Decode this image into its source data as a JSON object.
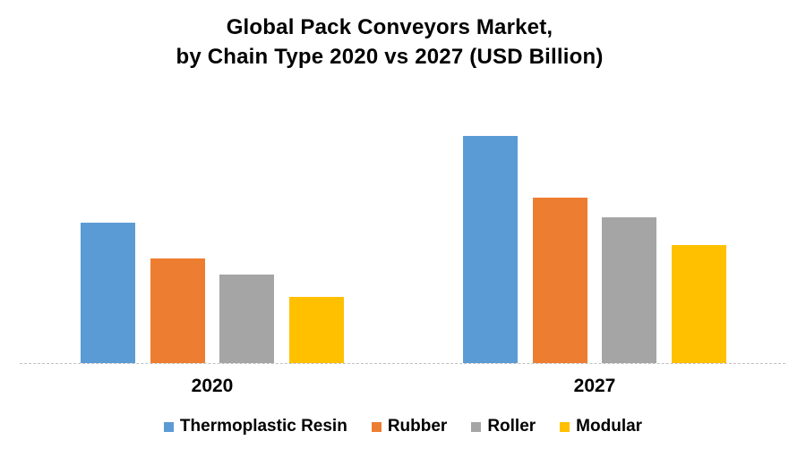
{
  "title": {
    "line1": "Global Pack Conveyors Market,",
    "line2": "by Chain Type 2020 vs 2027 (USD Billion)"
  },
  "chart_data": {
    "type": "bar",
    "title": "Global Pack Conveyors Market, by Chain Type 2020 vs 2027 (USD Billion)",
    "categories": [
      "2020",
      "2027"
    ],
    "series": [
      {
        "name": "Thermoplastic Resin",
        "color": "#5B9BD5",
        "values": [
          62,
          100
        ]
      },
      {
        "name": "Rubber",
        "color": "#ED7D31",
        "values": [
          46,
          73
        ]
      },
      {
        "name": "Roller",
        "color": "#A5A5A5",
        "values": [
          39,
          64
        ]
      },
      {
        "name": "Modular",
        "color": "#FFC000",
        "values": [
          29,
          52
        ]
      }
    ],
    "xlabel": "",
    "ylabel": "",
    "ylim": [
      0,
      100
    ],
    "value_note": "Y axis is unlabeled in the source chart; values are relative bar heights indexed so the tallest bar (Thermoplastic Resin, 2027) = 100",
    "grid": false,
    "legend_position": "bottom",
    "axis_line_color": "#C2C2C2"
  }
}
